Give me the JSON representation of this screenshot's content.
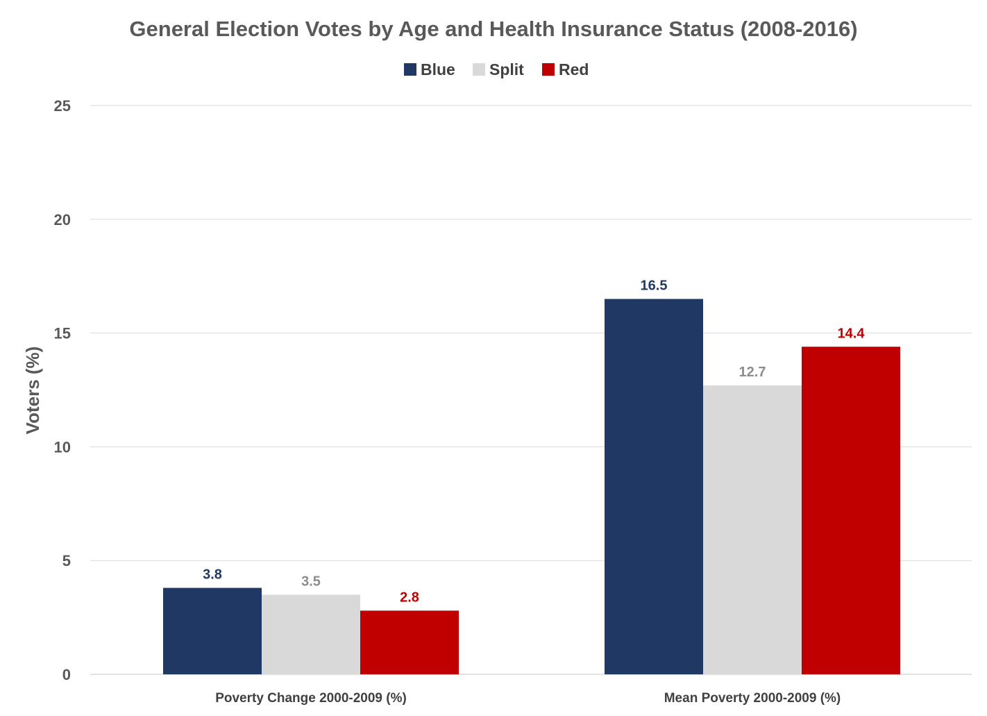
{
  "chart_data": {
    "type": "bar",
    "title": "General Election Votes by Age and Health Insurance Status (2008-2016)",
    "xlabel": "",
    "ylabel": "Voters (%)",
    "ylim": [
      0,
      25
    ],
    "yticks": [
      "0",
      "5",
      "10",
      "15",
      "20",
      "25"
    ],
    "categories": [
      "Poverty Change 2000-2009 (%)",
      "Mean Poverty 2000-2009 (%)"
    ],
    "series": [
      {
        "name": "Blue",
        "values": [
          3.8,
          16.5
        ],
        "labels": [
          "3.8",
          "16.5"
        ],
        "color": "#203864",
        "label_color": "#203864"
      },
      {
        "name": "Split",
        "values": [
          3.5,
          12.7
        ],
        "labels": [
          "3.5",
          "12.7"
        ],
        "color": "#d9d9d9",
        "label_color": "#8c8c8c"
      },
      {
        "name": "Red",
        "values": [
          2.8,
          14.4
        ],
        "labels": [
          "2.8",
          "14.4"
        ],
        "color": "#c00000",
        "label_color": "#c00000"
      }
    ],
    "grid": true,
    "legend_position": "top-center",
    "gridline_color": "#d9d9d9"
  }
}
